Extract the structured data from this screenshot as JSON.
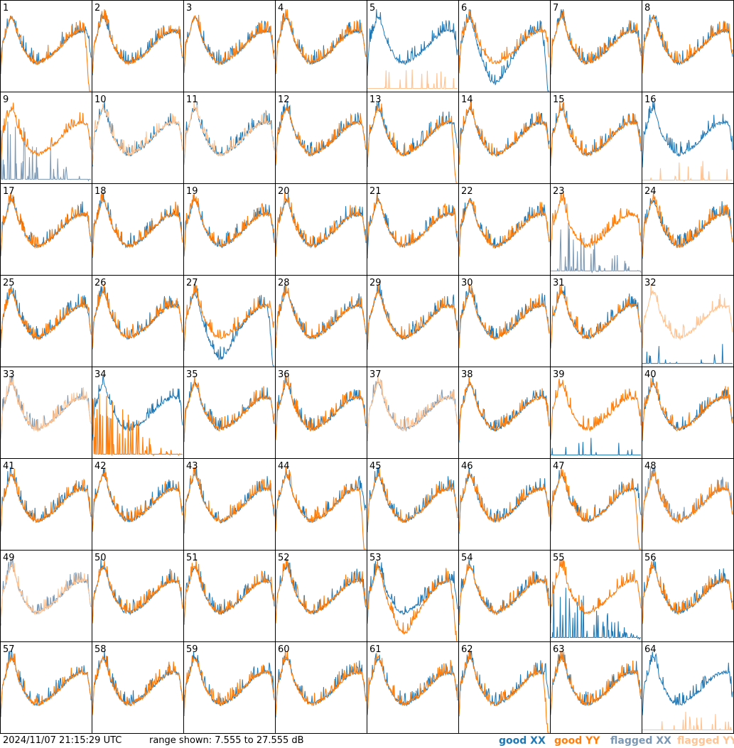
{
  "timestamp": "2024/11/07 21:15:29 UTC",
  "range_text": "range shown: 7.555 to 27.555 dB",
  "legend": [
    {
      "label": "good XX",
      "color": "#1f77b4"
    },
    {
      "label": "good YY",
      "color": "#ff7f0e"
    },
    {
      "label": "flagged XX",
      "color": "#7a97b3"
    },
    {
      "label": "flagged YY",
      "color": "#ffc493"
    }
  ],
  "chart_data": {
    "type": "line",
    "title": "",
    "ylim": [
      7.555,
      27.555
    ],
    "y_unit": "dB",
    "grid": "8x8 panels",
    "legend_position": "bottom-right",
    "panels": [
      {
        "id": "1",
        "xx": "good",
        "yy": "good",
        "note": "YY drops at right edge"
      },
      {
        "id": "2",
        "xx": "good",
        "yy": "good"
      },
      {
        "id": "3",
        "xx": "good",
        "yy": "good"
      },
      {
        "id": "4",
        "xx": "good",
        "yy": "good"
      },
      {
        "id": "5",
        "xx": "good",
        "yy": "flagged",
        "note": "YY mostly near floor with spikes"
      },
      {
        "id": "6",
        "xx": "good",
        "yy": "good",
        "note": "XX dips and drops at right"
      },
      {
        "id": "7",
        "xx": "good",
        "yy": "good"
      },
      {
        "id": "8",
        "xx": "good",
        "yy": "good"
      },
      {
        "id": "9",
        "xx": "flagged",
        "yy": "good",
        "note": "XX spiky near floor"
      },
      {
        "id": "10",
        "xx": "good",
        "yy": "flagged"
      },
      {
        "id": "11",
        "xx": "good",
        "yy": "flagged"
      },
      {
        "id": "12",
        "xx": "good",
        "yy": "good"
      },
      {
        "id": "13",
        "xx": "good",
        "yy": "good",
        "note": "YY drops at right edge"
      },
      {
        "id": "14",
        "xx": "good",
        "yy": "good"
      },
      {
        "id": "15",
        "xx": "good",
        "yy": "good"
      },
      {
        "id": "16",
        "xx": "good",
        "yy": "flagged",
        "note": "YY near floor"
      },
      {
        "id": "17",
        "xx": "good",
        "yy": "good"
      },
      {
        "id": "18",
        "xx": "good",
        "yy": "good"
      },
      {
        "id": "19",
        "xx": "good",
        "yy": "good"
      },
      {
        "id": "20",
        "xx": "good",
        "yy": "good"
      },
      {
        "id": "21",
        "xx": "good",
        "yy": "good"
      },
      {
        "id": "22",
        "xx": "good",
        "yy": "good"
      },
      {
        "id": "23",
        "xx": "flagged",
        "yy": "good",
        "note": "XX spiky near floor"
      },
      {
        "id": "24",
        "xx": "good",
        "yy": "good"
      },
      {
        "id": "25",
        "xx": "good",
        "yy": "good"
      },
      {
        "id": "26",
        "xx": "good",
        "yy": "good"
      },
      {
        "id": "27",
        "xx": "good",
        "yy": "good",
        "note": "XX dips and drops at right"
      },
      {
        "id": "28",
        "xx": "good",
        "yy": "good"
      },
      {
        "id": "29",
        "xx": "good",
        "yy": "good"
      },
      {
        "id": "30",
        "xx": "good",
        "yy": "good"
      },
      {
        "id": "31",
        "xx": "good",
        "yy": "good"
      },
      {
        "id": "32",
        "xx": "good",
        "yy": "flagged",
        "note": "XX near floor"
      },
      {
        "id": "33",
        "xx": "flagged",
        "yy": "flagged"
      },
      {
        "id": "34",
        "xx": "good",
        "yy": "good",
        "note": "YY spiky near floor"
      },
      {
        "id": "35",
        "xx": "good",
        "yy": "good"
      },
      {
        "id": "36",
        "xx": "good",
        "yy": "good"
      },
      {
        "id": "37",
        "xx": "flagged",
        "yy": "flagged"
      },
      {
        "id": "38",
        "xx": "good",
        "yy": "good"
      },
      {
        "id": "39",
        "xx": "good",
        "yy": "good",
        "note": "XX near floor with spike"
      },
      {
        "id": "40",
        "xx": "good",
        "yy": "good"
      },
      {
        "id": "41",
        "xx": "good",
        "yy": "good"
      },
      {
        "id": "42",
        "xx": "good",
        "yy": "good"
      },
      {
        "id": "43",
        "xx": "good",
        "yy": "good"
      },
      {
        "id": "44",
        "xx": "good",
        "yy": "good",
        "note": "YY drops at right edge"
      },
      {
        "id": "45",
        "xx": "good",
        "yy": "good"
      },
      {
        "id": "46",
        "xx": "good",
        "yy": "good"
      },
      {
        "id": "47",
        "xx": "good",
        "yy": "good",
        "note": "YY drops at right edge"
      },
      {
        "id": "48",
        "xx": "flagged",
        "yy": "good"
      },
      {
        "id": "49",
        "xx": "flagged",
        "yy": "flagged"
      },
      {
        "id": "50",
        "xx": "good",
        "yy": "good"
      },
      {
        "id": "51",
        "xx": "good",
        "yy": "good"
      },
      {
        "id": "52",
        "xx": "good",
        "yy": "good"
      },
      {
        "id": "53",
        "xx": "good",
        "yy": "good",
        "note": "YY dips and drops at right"
      },
      {
        "id": "54",
        "xx": "good",
        "yy": "good"
      },
      {
        "id": "55",
        "xx": "good",
        "yy": "good",
        "note": "XX spiky near floor"
      },
      {
        "id": "56",
        "xx": "good",
        "yy": "good"
      },
      {
        "id": "57",
        "xx": "good",
        "yy": "good"
      },
      {
        "id": "58",
        "xx": "good",
        "yy": "good"
      },
      {
        "id": "59",
        "xx": "good",
        "yy": "good"
      },
      {
        "id": "60",
        "xx": "good",
        "yy": "good"
      },
      {
        "id": "61",
        "xx": "good",
        "yy": "good"
      },
      {
        "id": "62",
        "xx": "good",
        "yy": "good",
        "note": "YY low and drops at right"
      },
      {
        "id": "63",
        "xx": "good",
        "yy": "good"
      },
      {
        "id": "64",
        "xx": "good",
        "yy": "flagged",
        "note": "YY near floor"
      }
    ]
  }
}
